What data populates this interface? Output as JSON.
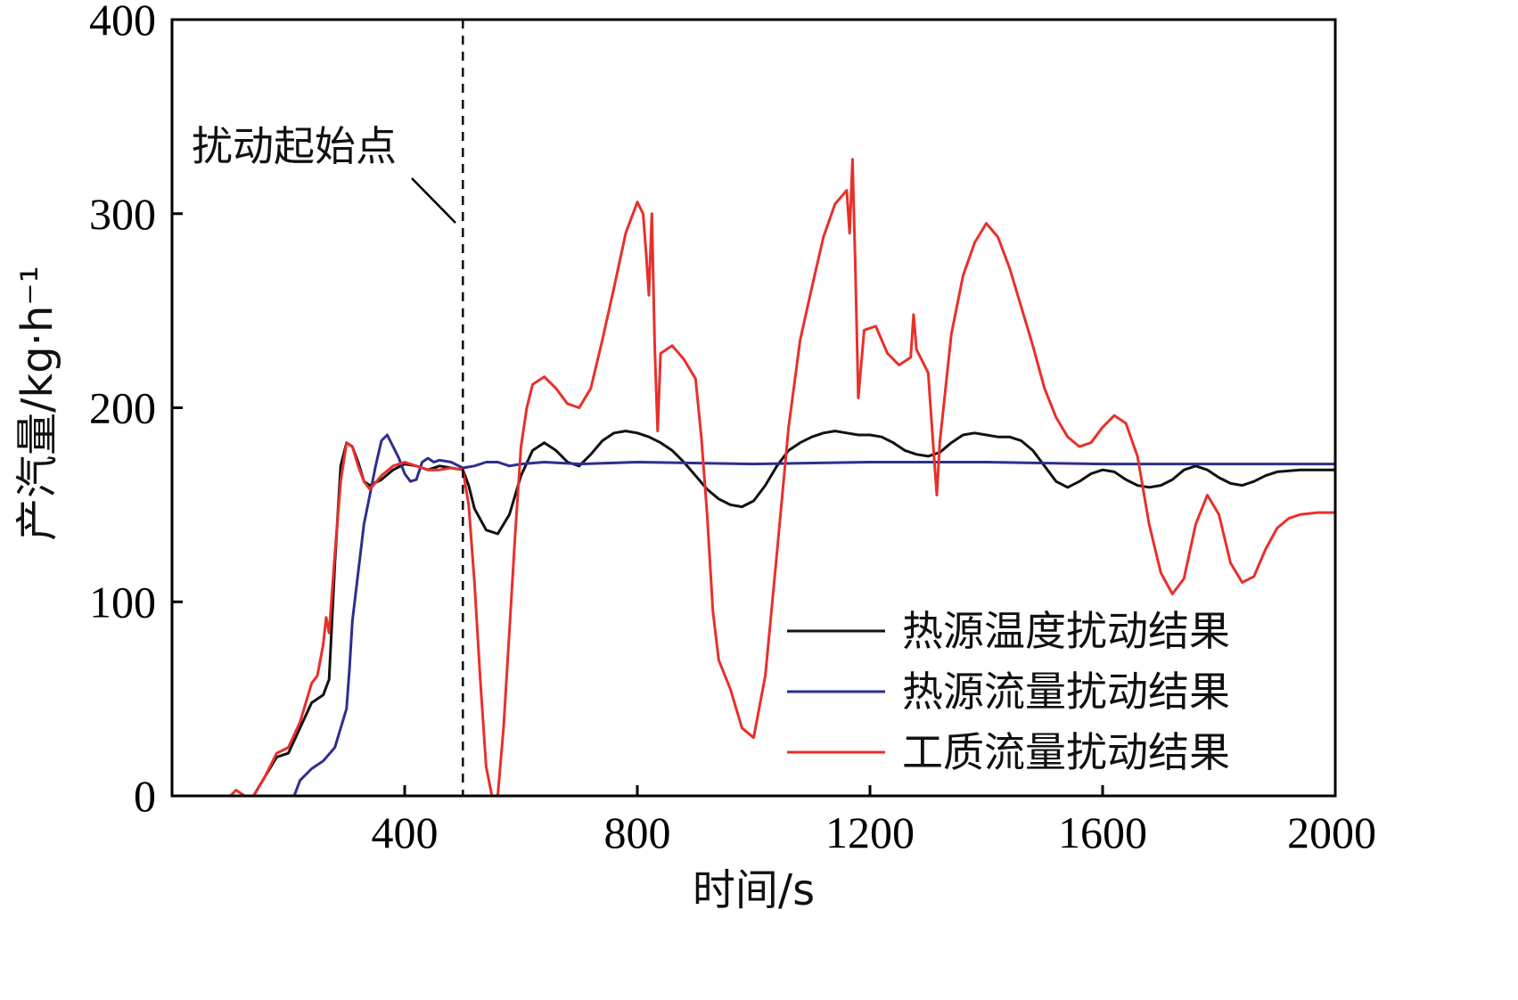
{
  "chart_data": {
    "type": "line",
    "xlabel": "时间/s",
    "ylabel": "产汽量/kg·h⁻¹",
    "xlim": [
      0,
      2000
    ],
    "ylim": [
      0,
      400
    ],
    "xticks": [
      400,
      800,
      1200,
      1600,
      2000
    ],
    "yticks": [
      0,
      100,
      200,
      300,
      400
    ],
    "grid": false,
    "legend_position": "bottom-right",
    "annotation": {
      "text": "扰动起始点",
      "x": 500
    },
    "series": [
      {
        "name": "热源温度扰动结果",
        "color": "#111111",
        "points": [
          [
            140,
            0
          ],
          [
            160,
            10
          ],
          [
            180,
            20
          ],
          [
            200,
            22
          ],
          [
            220,
            35
          ],
          [
            240,
            48
          ],
          [
            260,
            52
          ],
          [
            270,
            60
          ],
          [
            280,
            120
          ],
          [
            290,
            170
          ],
          [
            300,
            182
          ],
          [
            310,
            180
          ],
          [
            320,
            172
          ],
          [
            330,
            162
          ],
          [
            340,
            160
          ],
          [
            360,
            163
          ],
          [
            380,
            168
          ],
          [
            400,
            171
          ],
          [
            420,
            170
          ],
          [
            440,
            168
          ],
          [
            460,
            170
          ],
          [
            480,
            169
          ],
          [
            500,
            168
          ],
          [
            510,
            160
          ],
          [
            520,
            148
          ],
          [
            540,
            137
          ],
          [
            560,
            135
          ],
          [
            580,
            145
          ],
          [
            600,
            165
          ],
          [
            620,
            178
          ],
          [
            640,
            182
          ],
          [
            660,
            178
          ],
          [
            680,
            172
          ],
          [
            700,
            170
          ],
          [
            720,
            176
          ],
          [
            740,
            183
          ],
          [
            760,
            187
          ],
          [
            780,
            188
          ],
          [
            800,
            187
          ],
          [
            820,
            185
          ],
          [
            840,
            182
          ],
          [
            860,
            178
          ],
          [
            880,
            172
          ],
          [
            900,
            165
          ],
          [
            920,
            158
          ],
          [
            940,
            153
          ],
          [
            960,
            150
          ],
          [
            980,
            149
          ],
          [
            1000,
            152
          ],
          [
            1020,
            160
          ],
          [
            1040,
            170
          ],
          [
            1060,
            178
          ],
          [
            1080,
            182
          ],
          [
            1100,
            185
          ],
          [
            1120,
            187
          ],
          [
            1140,
            188
          ],
          [
            1160,
            187
          ],
          [
            1180,
            186
          ],
          [
            1200,
            186
          ],
          [
            1220,
            185
          ],
          [
            1240,
            182
          ],
          [
            1260,
            178
          ],
          [
            1280,
            176
          ],
          [
            1300,
            175
          ],
          [
            1320,
            177
          ],
          [
            1340,
            182
          ],
          [
            1360,
            186
          ],
          [
            1380,
            187
          ],
          [
            1400,
            186
          ],
          [
            1420,
            185
          ],
          [
            1440,
            185
          ],
          [
            1460,
            183
          ],
          [
            1480,
            178
          ],
          [
            1500,
            170
          ],
          [
            1520,
            162
          ],
          [
            1540,
            159
          ],
          [
            1560,
            162
          ],
          [
            1580,
            166
          ],
          [
            1600,
            168
          ],
          [
            1620,
            167
          ],
          [
            1640,
            163
          ],
          [
            1660,
            160
          ],
          [
            1680,
            159
          ],
          [
            1700,
            160
          ],
          [
            1720,
            163
          ],
          [
            1740,
            168
          ],
          [
            1760,
            170
          ],
          [
            1780,
            168
          ],
          [
            1800,
            164
          ],
          [
            1820,
            161
          ],
          [
            1840,
            160
          ],
          [
            1860,
            162
          ],
          [
            1880,
            165
          ],
          [
            1900,
            167
          ],
          [
            1940,
            168
          ],
          [
            2000,
            168
          ]
        ]
      },
      {
        "name": "热源流量扰动结果",
        "color": "#2e2e8f",
        "points": [
          [
            210,
            0
          ],
          [
            220,
            8
          ],
          [
            240,
            14
          ],
          [
            260,
            18
          ],
          [
            280,
            25
          ],
          [
            300,
            45
          ],
          [
            305,
            65
          ],
          [
            310,
            90
          ],
          [
            320,
            115
          ],
          [
            330,
            140
          ],
          [
            340,
            155
          ],
          [
            350,
            170
          ],
          [
            360,
            183
          ],
          [
            370,
            186
          ],
          [
            380,
            180
          ],
          [
            390,
            174
          ],
          [
            400,
            166
          ],
          [
            410,
            162
          ],
          [
            420,
            163
          ],
          [
            430,
            172
          ],
          [
            440,
            174
          ],
          [
            450,
            172
          ],
          [
            460,
            173
          ],
          [
            480,
            172
          ],
          [
            500,
            169
          ],
          [
            520,
            170
          ],
          [
            540,
            172
          ],
          [
            560,
            172
          ],
          [
            580,
            170
          ],
          [
            600,
            171
          ],
          [
            640,
            172
          ],
          [
            700,
            171
          ],
          [
            800,
            172
          ],
          [
            1000,
            171
          ],
          [
            1200,
            172
          ],
          [
            1400,
            172
          ],
          [
            1600,
            171
          ],
          [
            1800,
            171
          ],
          [
            2000,
            171
          ]
        ]
      },
      {
        "name": "工质流量扰动结果",
        "color": "#e8302a",
        "points": [
          [
            100,
            0
          ],
          [
            110,
            3
          ],
          [
            125,
            0
          ],
          [
            140,
            0
          ],
          [
            160,
            10
          ],
          [
            180,
            22
          ],
          [
            200,
            25
          ],
          [
            220,
            38
          ],
          [
            240,
            58
          ],
          [
            250,
            62
          ],
          [
            260,
            78
          ],
          [
            265,
            92
          ],
          [
            270,
            84
          ],
          [
            280,
            125
          ],
          [
            290,
            162
          ],
          [
            300,
            182
          ],
          [
            310,
            180
          ],
          [
            320,
            170
          ],
          [
            330,
            162
          ],
          [
            340,
            158
          ],
          [
            360,
            165
          ],
          [
            380,
            170
          ],
          [
            400,
            172
          ],
          [
            420,
            170
          ],
          [
            440,
            168
          ],
          [
            460,
            168
          ],
          [
            480,
            169
          ],
          [
            500,
            168
          ],
          [
            510,
            150
          ],
          [
            520,
            110
          ],
          [
            530,
            60
          ],
          [
            540,
            15
          ],
          [
            550,
            0
          ],
          [
            560,
            0
          ],
          [
            570,
            35
          ],
          [
            580,
            85
          ],
          [
            590,
            135
          ],
          [
            600,
            180
          ],
          [
            610,
            200
          ],
          [
            620,
            212
          ],
          [
            640,
            216
          ],
          [
            660,
            210
          ],
          [
            680,
            202
          ],
          [
            700,
            200
          ],
          [
            720,
            210
          ],
          [
            740,
            235
          ],
          [
            760,
            262
          ],
          [
            780,
            290
          ],
          [
            800,
            306
          ],
          [
            810,
            300
          ],
          [
            815,
            280
          ],
          [
            820,
            258
          ],
          [
            825,
            300
          ],
          [
            830,
            230
          ],
          [
            835,
            188
          ],
          [
            840,
            228
          ],
          [
            860,
            232
          ],
          [
            880,
            225
          ],
          [
            900,
            215
          ],
          [
            910,
            185
          ],
          [
            920,
            145
          ],
          [
            930,
            95
          ],
          [
            940,
            70
          ],
          [
            960,
            55
          ],
          [
            980,
            35
          ],
          [
            1000,
            30
          ],
          [
            1020,
            62
          ],
          [
            1040,
            125
          ],
          [
            1060,
            190
          ],
          [
            1080,
            235
          ],
          [
            1100,
            262
          ],
          [
            1120,
            288
          ],
          [
            1140,
            305
          ],
          [
            1160,
            312
          ],
          [
            1165,
            290
          ],
          [
            1170,
            328
          ],
          [
            1175,
            270
          ],
          [
            1180,
            205
          ],
          [
            1190,
            240
          ],
          [
            1210,
            242
          ],
          [
            1230,
            228
          ],
          [
            1250,
            222
          ],
          [
            1270,
            226
          ],
          [
            1275,
            248
          ],
          [
            1280,
            230
          ],
          [
            1300,
            218
          ],
          [
            1310,
            175
          ],
          [
            1315,
            155
          ],
          [
            1320,
            182
          ],
          [
            1340,
            238
          ],
          [
            1360,
            268
          ],
          [
            1380,
            285
          ],
          [
            1400,
            295
          ],
          [
            1420,
            288
          ],
          [
            1440,
            272
          ],
          [
            1460,
            252
          ],
          [
            1480,
            232
          ],
          [
            1500,
            210
          ],
          [
            1520,
            195
          ],
          [
            1540,
            185
          ],
          [
            1560,
            180
          ],
          [
            1580,
            182
          ],
          [
            1600,
            190
          ],
          [
            1620,
            196
          ],
          [
            1640,
            192
          ],
          [
            1660,
            175
          ],
          [
            1680,
            140
          ],
          [
            1700,
            115
          ],
          [
            1720,
            104
          ],
          [
            1740,
            112
          ],
          [
            1760,
            140
          ],
          [
            1780,
            155
          ],
          [
            1800,
            145
          ],
          [
            1820,
            120
          ],
          [
            1840,
            110
          ],
          [
            1860,
            113
          ],
          [
            1880,
            127
          ],
          [
            1900,
            138
          ],
          [
            1920,
            143
          ],
          [
            1940,
            145
          ],
          [
            1970,
            146
          ],
          [
            2000,
            146
          ]
        ]
      }
    ]
  }
}
